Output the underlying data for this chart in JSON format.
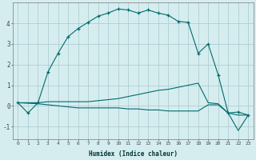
{
  "xlabel": "Humidex (Indice chaleur)",
  "bg_color": "#d6edf0",
  "grid_color": "#aecdd2",
  "line_color": "#006b6b",
  "xlim": [
    -0.5,
    23.5
  ],
  "ylim": [
    -1.6,
    5.0
  ],
  "xticks": [
    0,
    1,
    2,
    3,
    4,
    5,
    6,
    7,
    8,
    9,
    10,
    11,
    12,
    13,
    14,
    15,
    16,
    17,
    18,
    19,
    20,
    21,
    22,
    23
  ],
  "yticks": [
    -1,
    0,
    1,
    2,
    3,
    4
  ],
  "series1_x": [
    0,
    1,
    2,
    3,
    4,
    5,
    6,
    7,
    8,
    9,
    10,
    11,
    12,
    13,
    14,
    15,
    16,
    17,
    18,
    19,
    20,
    21,
    22,
    23
  ],
  "series1_y": [
    0.15,
    -0.35,
    0.15,
    1.65,
    2.55,
    3.35,
    3.75,
    4.05,
    4.35,
    4.5,
    4.7,
    4.65,
    4.5,
    4.65,
    4.5,
    4.4,
    4.1,
    4.05,
    2.55,
    3.0,
    1.5,
    -0.35,
    -0.3,
    -0.45
  ],
  "series2_x": [
    0,
    2,
    3,
    4,
    5,
    6,
    7,
    8,
    9,
    10,
    11,
    12,
    13,
    14,
    15,
    16,
    17,
    18,
    19,
    20,
    21,
    22,
    23
  ],
  "series2_y": [
    0.15,
    0.15,
    0.2,
    0.2,
    0.2,
    0.2,
    0.2,
    0.25,
    0.3,
    0.35,
    0.45,
    0.55,
    0.65,
    0.75,
    0.8,
    0.9,
    1.0,
    1.1,
    0.15,
    0.1,
    -0.35,
    -0.45,
    -0.45
  ],
  "series3_x": [
    0,
    2,
    3,
    4,
    5,
    6,
    7,
    8,
    9,
    10,
    11,
    12,
    13,
    14,
    15,
    16,
    17,
    18,
    19,
    20,
    21,
    22,
    23
  ],
  "series3_y": [
    0.15,
    0.1,
    0.05,
    0.0,
    -0.05,
    -0.1,
    -0.1,
    -0.1,
    -0.1,
    -0.1,
    -0.15,
    -0.15,
    -0.2,
    -0.2,
    -0.25,
    -0.25,
    -0.25,
    -0.25,
    0.05,
    0.05,
    -0.35,
    -1.2,
    -0.45
  ]
}
